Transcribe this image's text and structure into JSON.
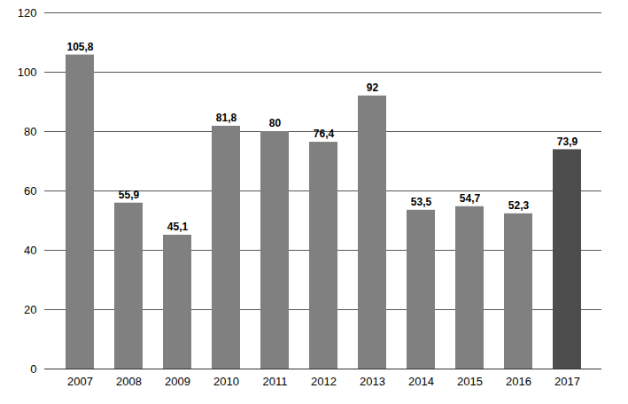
{
  "chart_data": {
    "type": "bar",
    "categories": [
      "2007",
      "2008",
      "2009",
      "2010",
      "2011",
      "2012",
      "2013",
      "2014",
      "2015",
      "2016",
      "2017"
    ],
    "values": [
      105.8,
      55.9,
      45.1,
      81.8,
      80,
      76.4,
      92,
      53.5,
      54.7,
      52.3,
      73.9
    ],
    "value_labels": [
      "105,8",
      "55,9",
      "45,1",
      "81,8",
      "80",
      "76,4",
      "92",
      "53,5",
      "54,7",
      "52,3",
      "73,9"
    ],
    "colors": [
      "#808080",
      "#808080",
      "#808080",
      "#808080",
      "#808080",
      "#808080",
      "#808080",
      "#808080",
      "#808080",
      "#808080",
      "#4d4d4d"
    ],
    "ylim": [
      0,
      120
    ],
    "yticks": [
      0,
      20,
      40,
      60,
      80,
      100,
      120
    ],
    "grid": true,
    "data_labels": true
  }
}
